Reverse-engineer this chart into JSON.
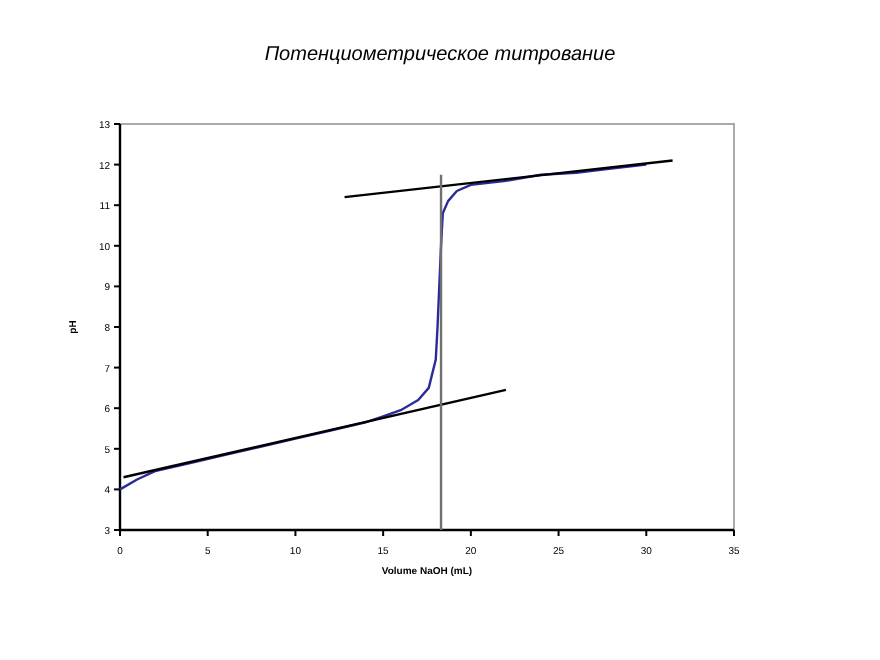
{
  "chart_data": {
    "type": "line",
    "title": "Потенциометрическое титрование",
    "xlabel": "Volume NaOH (mL)",
    "ylabel": "pH",
    "xlim": [
      0,
      35
    ],
    "xticks": [
      0,
      5,
      10,
      15,
      20,
      25,
      30,
      35
    ],
    "ylim": [
      3,
      13
    ],
    "yticks": [
      3,
      4,
      5,
      6,
      7,
      8,
      9,
      10,
      11,
      12,
      13
    ],
    "marker": "none",
    "line_style": "solid",
    "series": [
      {
        "color": "#2a2a9a",
        "x": [
          0,
          1,
          2,
          4,
          6,
          8,
          10,
          12,
          14,
          15,
          16,
          17,
          17.6,
          18,
          18.1,
          18.2,
          18.3,
          18.4,
          18.7,
          19.2,
          20,
          22,
          24,
          26,
          28,
          30
        ],
        "values": [
          4.0,
          4.25,
          4.45,
          4.65,
          4.85,
          5.05,
          5.25,
          5.45,
          5.65,
          5.8,
          5.95,
          6.2,
          6.5,
          7.2,
          8,
          9,
          10,
          10.8,
          11.1,
          11.35,
          11.5,
          11.6,
          11.75,
          11.8,
          11.9,
          12.0
        ]
      },
      {
        "color": "#000000",
        "x": [
          0.2,
          22
        ],
        "values": [
          4.3,
          6.45
        ]
      },
      {
        "color": "#000000",
        "x": [
          12.8,
          31.5
        ],
        "values": [
          11.2,
          12.1
        ]
      },
      {
        "color": "#707070",
        "x": [
          18.3,
          18.3
        ],
        "values": [
          3,
          11.75
        ]
      }
    ]
  }
}
